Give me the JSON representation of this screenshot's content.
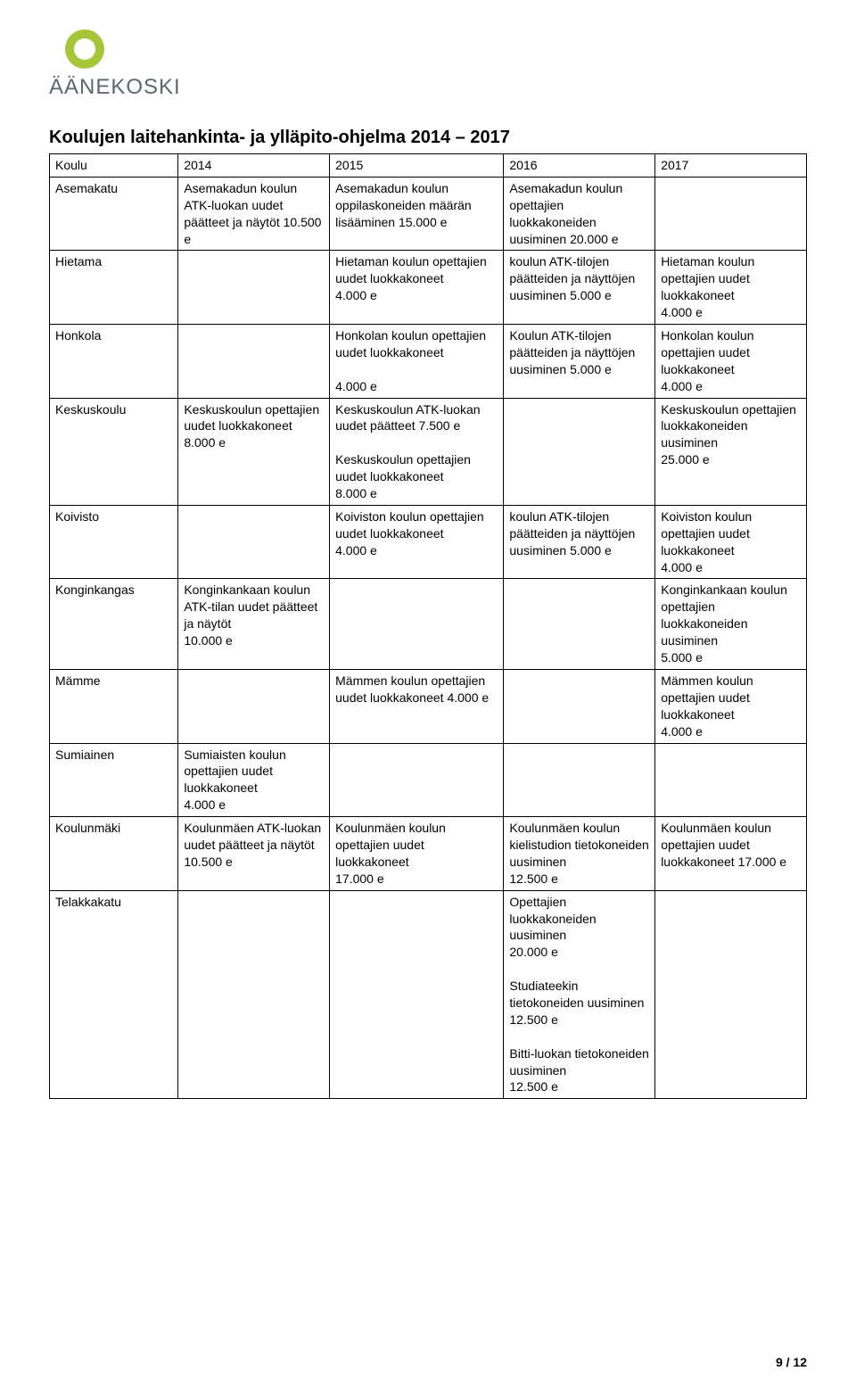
{
  "logo_text": "ÄÄNEKOSKI",
  "logo_text_color": "#5c6770",
  "logo_swirl_outer": "#a6c539",
  "logo_swirl_inner": "#5c6770",
  "heading": "Koulujen laitehankinta- ja ylläpito-ohjelma 2014 – 2017",
  "page_number": "9 / 12",
  "columns": [
    "Koulu",
    "2014",
    "2015",
    "2016",
    "2017"
  ],
  "rows": [
    {
      "c0": "Asemakatu",
      "c1": "Asemakadun koulun ATK-luokan uudet päätteet ja näytöt 10.500 e",
      "c2": "Asemakadun koulun oppilaskoneiden määrän lisääminen 15.000 e",
      "c3": "Asemakadun koulun opettajien luokkakoneiden uusiminen 20.000 e",
      "c4": ""
    },
    {
      "c0": "Hietama",
      "c1": "",
      "c2": "Hietaman koulun opettajien uudet luokkakoneet\n4.000 e",
      "c3": "koulun ATK-tilojen päätteiden ja näyttöjen uusiminen 5.000 e",
      "c4": "Hietaman koulun opettajien uudet luokkakoneet\n4.000 e"
    },
    {
      "c0": "Honkola",
      "c1": "",
      "c2": "Honkolan koulun opettajien uudet luokkakoneet\n\n4.000 e",
      "c3": "Koulun ATK-tilojen päätteiden ja näyttöjen uusiminen 5.000 e",
      "c4": "Honkolan koulun opettajien uudet luokkakoneet\n4.000 e"
    },
    {
      "c0": "Keskuskoulu",
      "c1": "Keskuskoulun opettajien uudet luokkakoneet\n8.000 e",
      "c2": "Keskuskoulun ATK-luokan uudet päätteet 7.500 e\n\nKeskuskoulun opettajien uudet luokkakoneet\n8.000 e",
      "c3": "",
      "c4": "Keskuskoulun opettajien luokkakoneiden uusiminen\n25.000 e"
    },
    {
      "c0": "Koivisto",
      "c1": "",
      "c2": "Koiviston koulun opettajien uudet luokkakoneet\n4.000 e",
      "c3": "koulun ATK-tilojen päätteiden ja näyttöjen uusiminen 5.000 e",
      "c4": "Koiviston koulun opettajien uudet luokkakoneet\n4.000 e"
    },
    {
      "c0": "Konginkangas",
      "c1": "Konginkankaan koulun ATK-tilan uudet päätteet ja näytöt\n10.000 e",
      "c2": "",
      "c3": "",
      "c4": "Konginkankaan koulun opettajien luokkakoneiden uusiminen\n 5.000 e"
    },
    {
      "c0": "Mämme",
      "c1": "",
      "c2": "Mämmen koulun opettajien uudet luokkakoneet 4.000 e",
      "c3": "",
      "c4": "Mämmen koulun opettajien uudet luokkakoneet\n4.000 e"
    },
    {
      "c0": "Sumiainen",
      "c1": "Sumiaisten koulun opettajien uudet luokkakoneet\n4.000 e",
      "c2": "",
      "c3": "",
      "c4": ""
    },
    {
      "c0": "Koulunmäki",
      "c1": "Koulunmäen ATK-luokan uudet päätteet ja näytöt 10.500 e",
      "c2": "Koulunmäen koulun opettajien uudet luokkakoneet\n17.000 e",
      "c3": "Koulunmäen koulun kielistudion tietokoneiden uusiminen\n12.500 e",
      "c4": "Koulunmäen koulun opettajien uudet luokkakoneet 17.000 e"
    },
    {
      "c0": "Telakkakatu",
      "c1": "",
      "c2": "",
      "c3": "Opettajien luokkakoneiden uusiminen\n20.000 e\n\nStudiateekin tietokoneiden uusiminen\n12.500 e\n\nBitti-luokan tietokoneiden uusiminen\n12.500 e",
      "c4": ""
    }
  ]
}
